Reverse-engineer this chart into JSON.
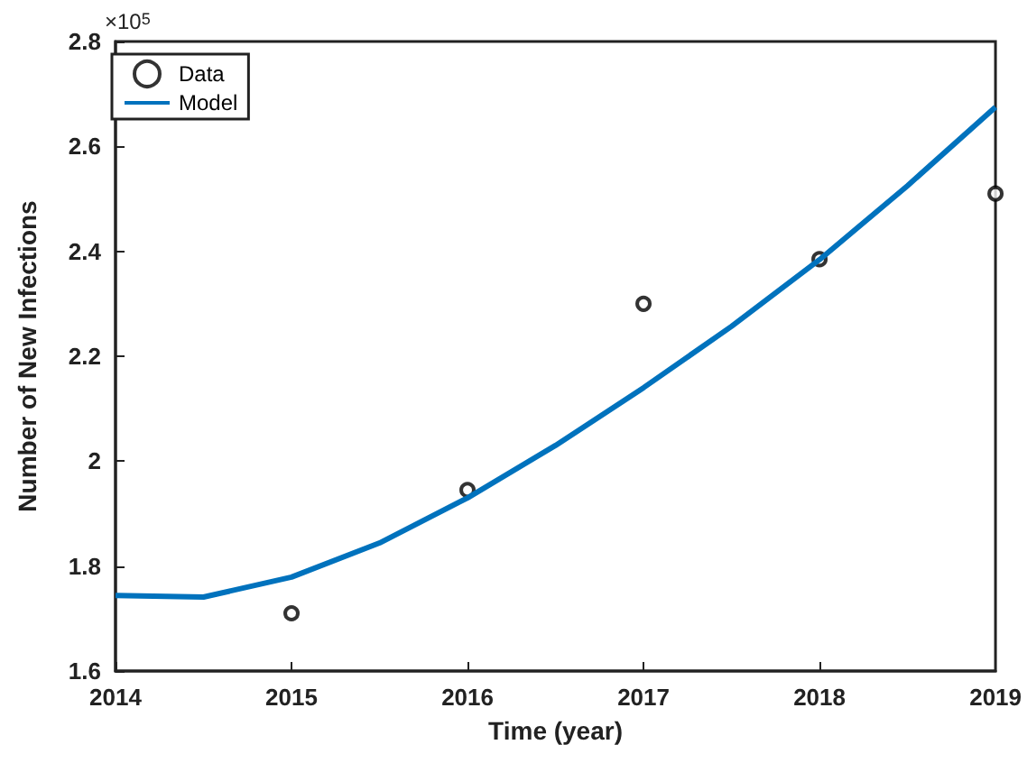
{
  "chart_data": {
    "type": "line",
    "xlabel": "Time (year)",
    "ylabel": "Number of New Infections",
    "annotations": [
      "×10$^{5}$"
    ],
    "xlim": [
      2014,
      2019
    ],
    "xticks": [
      2014,
      2015,
      2016,
      2017,
      2018,
      2019
    ],
    "ylim": [
      1.6,
      2.8
    ],
    "yticks": [
      1.6,
      1.8,
      2,
      2.2,
      2.4,
      2.6,
      2.8
    ],
    "grid": false,
    "legend": "top left",
    "series": [
      {
        "name": "Data",
        "type": "scatter",
        "marker": "circle",
        "color": "#000000",
        "x": [
          2015,
          2016,
          2017,
          2018,
          2019
        ],
        "values": [
          1.71,
          1.945,
          2.3,
          2.385,
          2.51
        ]
      },
      {
        "name": "Model",
        "type": "line",
        "marker": "none",
        "line_style": "solid",
        "color": "#0072bd",
        "x": [
          2014,
          2014.5,
          2015,
          2015.5,
          2016,
          2016.5,
          2017,
          2017.5,
          2018,
          2018.5,
          2019
        ],
        "values": [
          1.744,
          1.741,
          1.779,
          1.844,
          1.93,
          2.03,
          2.14,
          2.257,
          2.384,
          2.525,
          2.675
        ]
      }
    ]
  }
}
